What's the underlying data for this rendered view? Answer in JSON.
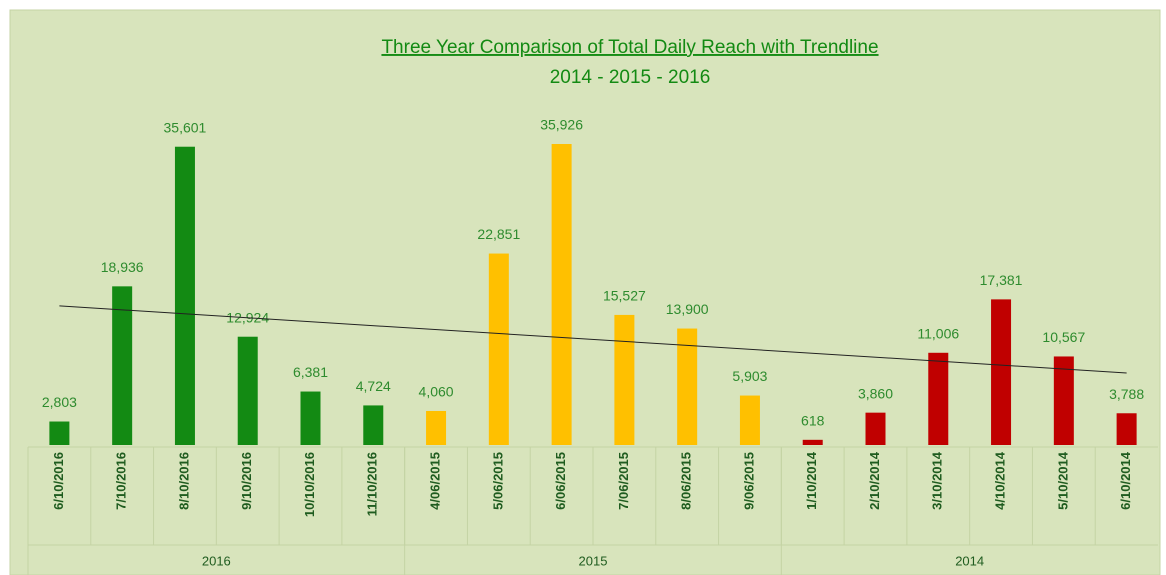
{
  "chart_data": {
    "type": "bar",
    "title": "Three Year Comparison of Total Daily Reach with Trendline",
    "subtitle": "2014 - 2015 - 2016",
    "trendline": "linear",
    "groups": [
      {
        "name": "2016",
        "color": "#138a13",
        "categories": [
          "6/10/2016",
          "7/10/2016",
          "8/10/2016",
          "9/10/2016",
          "10/10/2016",
          "11/10/2016"
        ],
        "values": [
          2803,
          18936,
          35601,
          12924,
          6381,
          4724
        ],
        "value_labels": [
          "2,803",
          "18,936",
          "35,601",
          "12,924",
          "6,381",
          "4,724"
        ]
      },
      {
        "name": "2015",
        "color": "#ffc000",
        "categories": [
          "4/06/2015",
          "5/06/2015",
          "6/06/2015",
          "7/06/2015",
          "8/06/2015",
          "9/06/2015"
        ],
        "values": [
          4060,
          22851,
          35926,
          15527,
          13900,
          5903
        ],
        "value_labels": [
          "4,060",
          "22,851",
          "35,926",
          "15,527",
          "13,900",
          "5,903"
        ]
      },
      {
        "name": "2014",
        "color": "#c00000",
        "categories": [
          "1/10/2014",
          "2/10/2014",
          "3/10/2014",
          "4/10/2014",
          "5/10/2014",
          "6/10/2014"
        ],
        "values": [
          618,
          3860,
          11006,
          17381,
          10567,
          3788
        ],
        "value_labels": [
          "618",
          "3,860",
          "11,006",
          "17,381",
          "10,567",
          "3,788"
        ]
      }
    ]
  }
}
